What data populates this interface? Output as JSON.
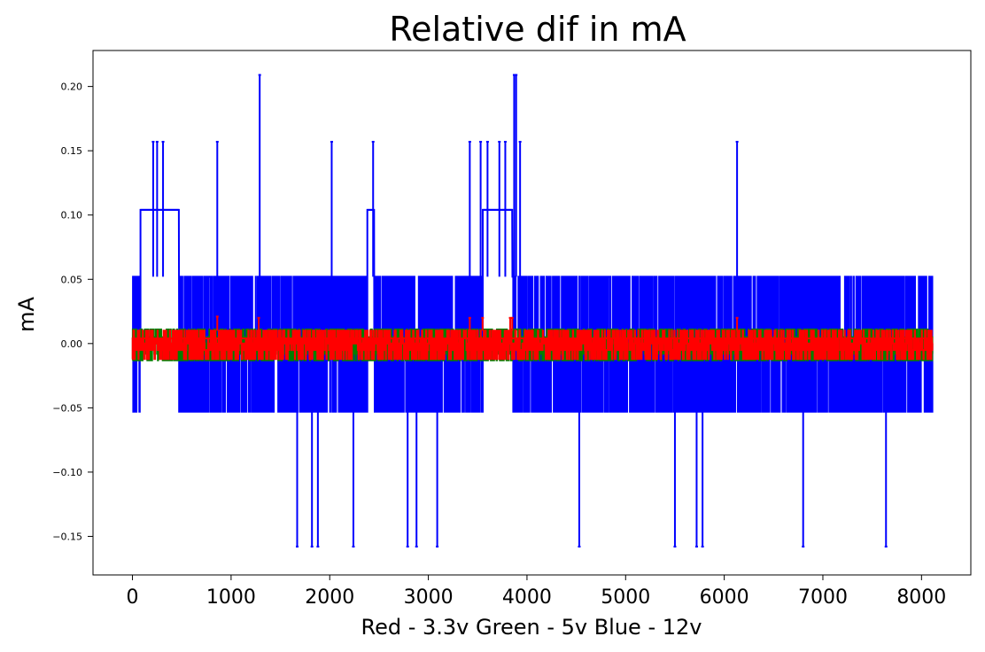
{
  "chart_data": {
    "type": "line",
    "title": "Relative dif in mA",
    "xlabel": "Red - 3.3v  Green - 5v  Blue - 12v",
    "ylabel": "mA",
    "xlim": [
      -400,
      8500
    ],
    "ylim": [
      -0.18,
      0.228
    ],
    "x_ticks": [
      0,
      1000,
      2000,
      3000,
      4000,
      5000,
      6000,
      7000,
      8000
    ],
    "x_tick_labels": [
      "0",
      "1000",
      "2000",
      "3000",
      "4000",
      "5000",
      "6000",
      "7000",
      "8000"
    ],
    "y_ticks": [
      -0.15,
      -0.1,
      -0.05,
      0.0,
      0.05,
      0.1,
      0.15,
      0.2
    ],
    "y_tick_labels": [
      "−0.15",
      "−0.10",
      "−0.05",
      "0.00",
      "0.05",
      "0.10",
      "0.15",
      "0.20"
    ],
    "grid": false,
    "legend": "none",
    "x_range": [
      0,
      8110
    ],
    "series": [
      {
        "color": "#0000ff",
        "levels": [
          -0.158,
          -0.105,
          -0.053,
          0.0,
          0.052,
          0.104,
          0.157,
          0.209
        ],
        "spikes": [
          {
            "x": 1290,
            "y": 0.209
          },
          {
            "x": 3870,
            "y": 0.209
          },
          {
            "x": 3890,
            "y": 0.209
          },
          {
            "x": 210,
            "y": 0.157
          },
          {
            "x": 250,
            "y": 0.157
          },
          {
            "x": 310,
            "y": 0.157
          },
          {
            "x": 860,
            "y": 0.157
          },
          {
            "x": 2020,
            "y": 0.157
          },
          {
            "x": 2440,
            "y": 0.157
          },
          {
            "x": 3420,
            "y": 0.157
          },
          {
            "x": 3530,
            "y": 0.157
          },
          {
            "x": 3600,
            "y": 0.157
          },
          {
            "x": 3720,
            "y": 0.157
          },
          {
            "x": 3780,
            "y": 0.157
          },
          {
            "x": 3930,
            "y": 0.157
          },
          {
            "x": 6130,
            "y": 0.157
          },
          {
            "x": 1670,
            "y": -0.158
          },
          {
            "x": 1820,
            "y": -0.158
          },
          {
            "x": 1880,
            "y": -0.158
          },
          {
            "x": 2240,
            "y": -0.158
          },
          {
            "x": 2790,
            "y": -0.158
          },
          {
            "x": 2880,
            "y": -0.158
          },
          {
            "x": 3090,
            "y": -0.158
          },
          {
            "x": 4530,
            "y": -0.158
          },
          {
            "x": 5500,
            "y": -0.158
          },
          {
            "x": 5720,
            "y": -0.158
          },
          {
            "x": 5780,
            "y": -0.158
          },
          {
            "x": 6800,
            "y": -0.158
          },
          {
            "x": 7640,
            "y": -0.158
          }
        ],
        "plateaus": [
          {
            "x_from": 80,
            "x_to": 470,
            "y": 0.104
          },
          {
            "x_from": 2380,
            "x_to": 2450,
            "y": 0.104
          },
          {
            "x_from": 3550,
            "x_to": 3850,
            "y": 0.104
          }
        ],
        "band_y": [
          -0.053,
          0.052
        ]
      },
      {
        "color": "#008000",
        "levels": [
          -0.013,
          -0.008,
          0.0,
          0.005,
          0.011
        ],
        "band_y": [
          -0.013,
          0.011
        ],
        "plateaus": [
          {
            "x_from": 3870,
            "x_to": 3910,
            "y": 0.011
          }
        ]
      },
      {
        "color": "#ff0000",
        "levels": [
          -0.012,
          -0.005,
          0.0,
          0.004,
          0.01
        ],
        "band_y": [
          -0.012,
          0.01
        ],
        "spikes": [
          {
            "x": 860,
            "y": 0.021
          },
          {
            "x": 1280,
            "y": 0.02
          },
          {
            "x": 3420,
            "y": 0.02
          },
          {
            "x": 3550,
            "y": 0.02
          },
          {
            "x": 3830,
            "y": 0.02
          },
          {
            "x": 3850,
            "y": 0.02
          },
          {
            "x": 6130,
            "y": 0.02
          }
        ],
        "baseline_y": 0.004
      }
    ]
  }
}
